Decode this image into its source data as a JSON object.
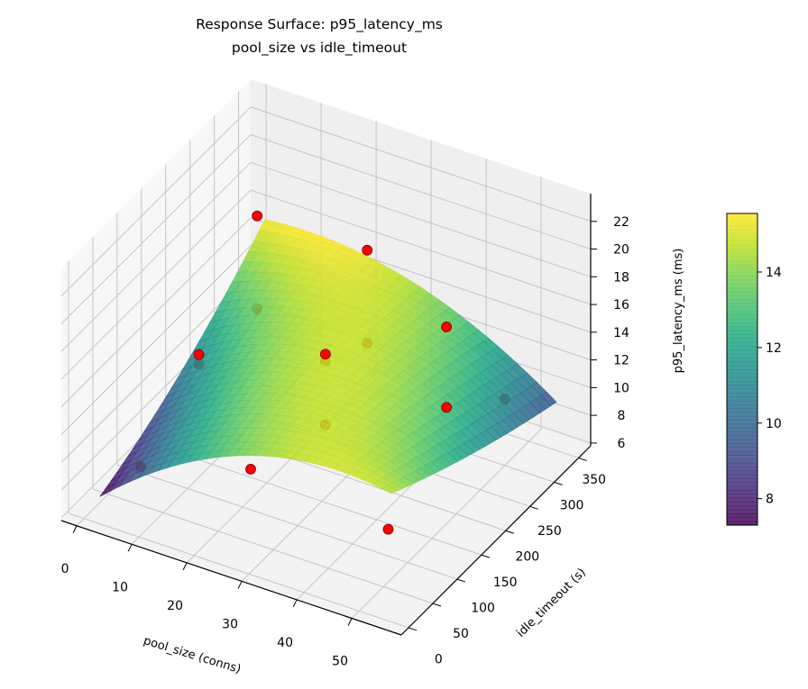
{
  "chart_data": {
    "type": "surface",
    "title": "Response Surface: p95_latency_ms",
    "subtitle": "pool_size vs idle_timeout",
    "xlabel": "pool_size (conns)",
    "ylabel": "idle_timeout (s)",
    "zlabel": "p95_latency_ms (ms)",
    "xlim": [
      -2.8,
      59
    ],
    "ylim": [
      -15,
      375
    ],
    "zlim": [
      5.8,
      24
    ],
    "xticks": [
      0,
      10,
      20,
      30,
      40,
      50
    ],
    "yticks": [
      0,
      50,
      100,
      150,
      200,
      250,
      300,
      350
    ],
    "zticks": [
      6,
      8,
      10,
      12,
      14,
      16,
      18,
      20,
      22
    ],
    "grid": true,
    "colormap": "viridis",
    "surface": {
      "x": [
        2,
        28.5,
        55
      ],
      "y": [
        10,
        180,
        350
      ],
      "z": [
        [
          7.3,
          13.8,
          14.6
        ],
        [
          10.5,
          14.8,
          11.6
        ],
        [
          15.4,
          14.5,
          9.3
        ]
      ]
    },
    "points_color": "#ff0000",
    "points": [
      {
        "x": 5,
        "y": 60,
        "z": 8.1
      },
      {
        "x": 25,
        "y": 60,
        "z": 10.6
      },
      {
        "x": 50,
        "y": 60,
        "z": 9.6
      },
      {
        "x": 5,
        "y": 180,
        "z": 12.0
      },
      {
        "x": 5,
        "y": 180,
        "z": 11.3
      },
      {
        "x": 28,
        "y": 180,
        "z": 15.1
      },
      {
        "x": 28,
        "y": 180,
        "z": 14.6
      },
      {
        "x": 28,
        "y": 180,
        "z": 10.0
      },
      {
        "x": 50,
        "y": 180,
        "z": 14.2
      },
      {
        "x": 50,
        "y": 180,
        "z": 20.0
      },
      {
        "x": 5,
        "y": 300,
        "z": 11.1
      },
      {
        "x": 5,
        "y": 300,
        "z": 17.8
      },
      {
        "x": 25,
        "y": 300,
        "z": 11.3
      },
      {
        "x": 25,
        "y": 300,
        "z": 18.0
      },
      {
        "x": 50,
        "y": 300,
        "z": 10.6
      }
    ],
    "colorbar": {
      "min": 7.3,
      "max": 15.55,
      "ticks": [
        8,
        10,
        12,
        14
      ]
    }
  }
}
